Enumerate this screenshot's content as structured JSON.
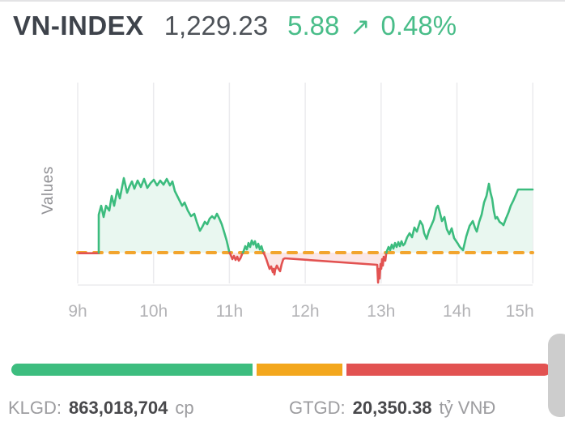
{
  "header": {
    "title": "VN-INDEX",
    "value": "1,229.23",
    "change": "5.88",
    "arrow": "↗",
    "change_pct": "0.48%"
  },
  "colors": {
    "title_text": "#3e434b",
    "value_text": "#4d5258",
    "change_text": "#49bd89"
  },
  "chart_data": {
    "type": "line",
    "title": "VN-INDEX intraday price",
    "ylabel": "Values",
    "xlabel": "",
    "x_ticks": [
      "9h",
      "10h",
      "11h",
      "12h",
      "13h",
      "14h",
      "15h"
    ],
    "x_range_hours": [
      9,
      15
    ],
    "baseline_value": 1223.35,
    "close_value": 1229.23,
    "grid": "vertical-only",
    "legend": "none",
    "colors": {
      "up": "#3cbc7e",
      "up_fill": "#e9f7f0",
      "down": "#e25251",
      "down_fill": "#fbe7e7",
      "baseline": "#f2a52e",
      "grid": "#ebebee",
      "axis_line": "#ececee",
      "axis_text": "#b3b3b6"
    },
    "series": [
      {
        "name": "VN-INDEX",
        "points": [
          [
            9.021,
            1223.3
          ],
          [
            9.277,
            1223.3
          ],
          [
            9.277,
            1226.89
          ],
          [
            9.309,
            1227.72
          ],
          [
            9.342,
            1226.67
          ],
          [
            9.374,
            1227.72
          ],
          [
            9.416,
            1227.27
          ],
          [
            9.448,
            1228.63
          ],
          [
            9.48,
            1227.72
          ],
          [
            9.523,
            1229.23
          ],
          [
            9.555,
            1228.4
          ],
          [
            9.608,
            1230.29
          ],
          [
            9.651,
            1228.93
          ],
          [
            9.683,
            1229.53
          ],
          [
            9.715,
            1229.98
          ],
          [
            9.747,
            1229.31
          ],
          [
            9.79,
            1230.06
          ],
          [
            9.832,
            1229.46
          ],
          [
            9.875,
            1230.21
          ],
          [
            9.918,
            1229.38
          ],
          [
            9.961,
            1229.83
          ],
          [
            10.003,
            1230.14
          ],
          [
            10.046,
            1229.61
          ],
          [
            10.089,
            1230.06
          ],
          [
            10.131,
            1229.68
          ],
          [
            10.174,
            1230.21
          ],
          [
            10.217,
            1229.61
          ],
          [
            10.249,
            1229.98
          ],
          [
            10.281,
            1229.08
          ],
          [
            10.323,
            1228.48
          ],
          [
            10.377,
            1227.72
          ],
          [
            10.409,
            1228.02
          ],
          [
            10.451,
            1227.27
          ],
          [
            10.494,
            1226.74
          ],
          [
            10.537,
            1226.97
          ],
          [
            10.569,
            1226.22
          ],
          [
            10.612,
            1225.39
          ],
          [
            10.644,
            1225.76
          ],
          [
            10.676,
            1226.22
          ],
          [
            10.708,
            1225.99
          ],
          [
            10.74,
            1226.52
          ],
          [
            10.772,
            1226.74
          ],
          [
            10.804,
            1226.52
          ],
          [
            10.836,
            1226.97
          ],
          [
            10.868,
            1226.52
          ],
          [
            10.9,
            1225.99
          ],
          [
            10.932,
            1225.24
          ],
          [
            10.964,
            1224.48
          ],
          [
            10.996,
            1223.5
          ],
          [
            11.017,
            1223.12
          ],
          [
            11.039,
            1222.75
          ],
          [
            11.06,
            1223.05
          ],
          [
            11.081,
            1222.67
          ],
          [
            11.103,
            1222.97
          ],
          [
            11.124,
            1222.6
          ],
          [
            11.145,
            1222.82
          ],
          [
            11.167,
            1223.2
          ],
          [
            11.188,
            1223.5
          ],
          [
            11.209,
            1223.95
          ],
          [
            11.231,
            1223.65
          ],
          [
            11.252,
            1224.25
          ],
          [
            11.273,
            1223.88
          ],
          [
            11.295,
            1224.48
          ],
          [
            11.316,
            1224.1
          ],
          [
            11.337,
            1224.41
          ],
          [
            11.359,
            1223.8
          ],
          [
            11.38,
            1224.18
          ],
          [
            11.401,
            1223.65
          ],
          [
            11.423,
            1223.95
          ],
          [
            11.444,
            1223.43
          ],
          [
            11.465,
            1223.12
          ],
          [
            11.487,
            1222.75
          ],
          [
            11.508,
            1222.29
          ],
          [
            11.529,
            1221.84
          ],
          [
            11.551,
            1222.07
          ],
          [
            11.572,
            1221.54
          ],
          [
            11.583,
            1221.84
          ],
          [
            11.593,
            1221.31
          ],
          [
            11.604,
            1221.77
          ],
          [
            11.625,
            1222.14
          ],
          [
            11.647,
            1221.84
          ],
          [
            11.668,
            1221.62
          ],
          [
            11.689,
            1222.29
          ],
          [
            11.711,
            1222.75
          ],
          [
            11.732,
            1222.82
          ],
          [
            12.949,
            1222.22
          ],
          [
            12.96,
            1220.56
          ],
          [
            12.97,
            1221.84
          ],
          [
            12.981,
            1220.94
          ],
          [
            12.992,
            1222.29
          ],
          [
            13.002,
            1221.84
          ],
          [
            13.013,
            1222.75
          ],
          [
            13.024,
            1222.14
          ],
          [
            13.034,
            1222.97
          ],
          [
            13.056,
            1222.6
          ],
          [
            13.066,
            1223.2
          ],
          [
            13.077,
            1223.5
          ],
          [
            13.098,
            1223.88
          ],
          [
            13.12,
            1223.58
          ],
          [
            13.141,
            1224.1
          ],
          [
            13.162,
            1223.73
          ],
          [
            13.184,
            1224.25
          ],
          [
            13.205,
            1223.88
          ],
          [
            13.227,
            1224.33
          ],
          [
            13.248,
            1223.95
          ],
          [
            13.269,
            1224.41
          ],
          [
            13.291,
            1224.03
          ],
          [
            13.312,
            1224.18
          ],
          [
            13.344,
            1224.78
          ],
          [
            13.376,
            1225.16
          ],
          [
            13.408,
            1224.78
          ],
          [
            13.44,
            1225.69
          ],
          [
            13.472,
            1225.31
          ],
          [
            13.515,
            1226.29
          ],
          [
            13.547,
            1225.91
          ],
          [
            13.568,
            1225.16
          ],
          [
            13.6,
            1224.63
          ],
          [
            13.632,
            1225.39
          ],
          [
            13.664,
            1225.91
          ],
          [
            13.696,
            1226.44
          ],
          [
            13.728,
            1227.5
          ],
          [
            13.749,
            1227.72
          ],
          [
            13.771,
            1227.2
          ],
          [
            13.803,
            1226.29
          ],
          [
            13.835,
            1226.67
          ],
          [
            13.867,
            1225.54
          ],
          [
            13.899,
            1225.08
          ],
          [
            13.931,
            1225.61
          ],
          [
            13.963,
            1224.71
          ],
          [
            14.006,
            1224.25
          ],
          [
            14.038,
            1223.88
          ],
          [
            14.08,
            1223.58
          ],
          [
            14.123,
            1224.86
          ],
          [
            14.166,
            1225.84
          ],
          [
            14.209,
            1226.29
          ],
          [
            14.241,
            1225.61
          ],
          [
            14.262,
            1225.31
          ],
          [
            14.294,
            1226.22
          ],
          [
            14.326,
            1226.89
          ],
          [
            14.358,
            1228.02
          ],
          [
            14.39,
            1228.63
          ],
          [
            14.422,
            1229.76
          ],
          [
            14.443,
            1228.93
          ],
          [
            14.465,
            1228.33
          ],
          [
            14.486,
            1227.27
          ],
          [
            14.508,
            1226.52
          ],
          [
            14.529,
            1226.67
          ],
          [
            14.561,
            1226.22
          ],
          [
            14.593,
            1226.06
          ],
          [
            14.614,
            1225.91
          ],
          [
            14.646,
            1226.52
          ],
          [
            14.678,
            1227.05
          ],
          [
            14.71,
            1227.72
          ],
          [
            14.742,
            1228.17
          ],
          [
            14.774,
            1228.7
          ],
          [
            14.806,
            1229.23
          ],
          [
            14.998,
            1229.23
          ]
        ]
      }
    ]
  },
  "breadth_bar": {
    "segments": [
      {
        "name": "advancers",
        "color": "#3dbd7f",
        "fraction": 0.454
      },
      {
        "name": "unchanged",
        "color": "#f3a71d",
        "fraction": 0.162
      },
      {
        "name": "decliners",
        "color": "#e25251",
        "fraction": 0.384
      }
    ]
  },
  "stats": {
    "klgd_label": "KLGD:",
    "klgd_value": "863,018,704",
    "klgd_unit": "cp",
    "gtgd_label": "GTGD:",
    "gtgd_value": "20,350.38",
    "gtgd_unit": "tỷ VNĐ"
  }
}
